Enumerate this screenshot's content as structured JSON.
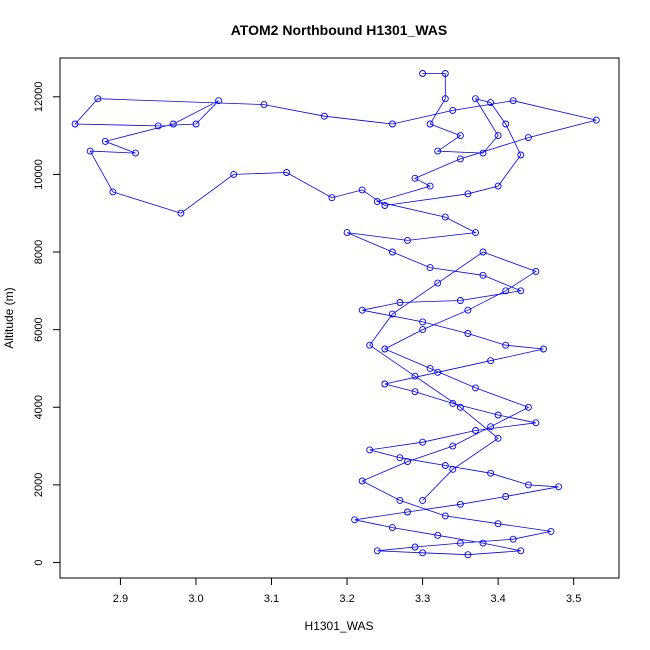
{
  "chart_data": {
    "type": "scatter",
    "title": "ATOM2 Northbound H1301_WAS",
    "xlabel": "H1301_WAS",
    "ylabel": "Altitude (m)",
    "xlim": [
      2.82,
      3.56
    ],
    "ylim": [
      -400,
      13000
    ],
    "x_ticks": [
      2.9,
      3.0,
      3.1,
      3.2,
      3.3,
      3.4,
      3.5
    ],
    "x_tick_labels": [
      "2.9",
      "3.0",
      "3.1",
      "3.2",
      "3.3",
      "3.4",
      "3.5"
    ],
    "y_ticks": [
      0,
      2000,
      4000,
      6000,
      8000,
      10000,
      12000
    ],
    "y_tick_labels": [
      "0",
      "2000",
      "4000",
      "6000",
      "8000",
      "10000",
      "12000"
    ],
    "grid": false,
    "legend": "none",
    "colors": {
      "series": "#0000ff",
      "axis": "#000000",
      "background": "#ffffff"
    },
    "marker": "open-circle",
    "connected": true,
    "series": [
      {
        "x": [
          3.3,
          3.33,
          3.33,
          3.31,
          3.35,
          3.32,
          3.38,
          3.4,
          3.37,
          3.39,
          3.41,
          3.43,
          3.4,
          3.36,
          3.25,
          3.22,
          3.18,
          3.12,
          3.05,
          2.98,
          2.89,
          2.86,
          2.92,
          2.88,
          2.97,
          3.03,
          3.0,
          2.95,
          2.84,
          2.87,
          3.09,
          3.17,
          3.26,
          3.34,
          3.42,
          3.53,
          3.44,
          3.35,
          3.29,
          3.31,
          3.24,
          3.33,
          3.37,
          3.28,
          3.2,
          3.26,
          3.31,
          3.38,
          3.43,
          3.35,
          3.27,
          3.22,
          3.3,
          3.36,
          3.41,
          3.46,
          3.39,
          3.32,
          3.25,
          3.29,
          3.34,
          3.4,
          3.45,
          3.37,
          3.3,
          3.23,
          3.27,
          3.33,
          3.39,
          3.44,
          3.48,
          3.41,
          3.35,
          3.28,
          3.21,
          3.26,
          3.32,
          3.38,
          3.43,
          3.36,
          3.3,
          3.24,
          3.29,
          3.35,
          3.42,
          3.47,
          3.4,
          3.33,
          3.27,
          3.22,
          3.28,
          3.34,
          3.39,
          3.44,
          3.37,
          3.31,
          3.25,
          3.3,
          3.36,
          3.41,
          3.45,
          3.38,
          3.32,
          3.26,
          3.23,
          3.29,
          3.35,
          3.4,
          3.34,
          3.3
        ],
        "y": [
          12600,
          12600,
          11950,
          11300,
          11000,
          10600,
          10550,
          11000,
          11950,
          11850,
          11300,
          10500,
          9700,
          9500,
          9200,
          9600,
          9400,
          10050,
          10000,
          9000,
          9550,
          10600,
          10550,
          10850,
          11300,
          11900,
          11300,
          11250,
          11300,
          11950,
          11800,
          11500,
          11300,
          11650,
          11900,
          11400,
          10950,
          10400,
          9900,
          9700,
          9300,
          8900,
          8500,
          8300,
          8500,
          8000,
          7600,
          7400,
          7000,
          6750,
          6700,
          6500,
          6200,
          5900,
          5600,
          5500,
          5200,
          4900,
          4600,
          4400,
          4100,
          3800,
          3600,
          3400,
          3100,
          2900,
          2700,
          2500,
          2300,
          2000,
          1950,
          1700,
          1500,
          1300,
          1100,
          900,
          700,
          500,
          300,
          200,
          250,
          300,
          400,
          500,
          600,
          800,
          1000,
          1200,
          1600,
          2100,
          2600,
          3000,
          3500,
          4000,
          4500,
          5000,
          5500,
          6000,
          6500,
          7000,
          7500,
          8000,
          7200,
          6400,
          5600,
          4800,
          4000,
          3200,
          2400,
          1600
        ]
      }
    ]
  }
}
